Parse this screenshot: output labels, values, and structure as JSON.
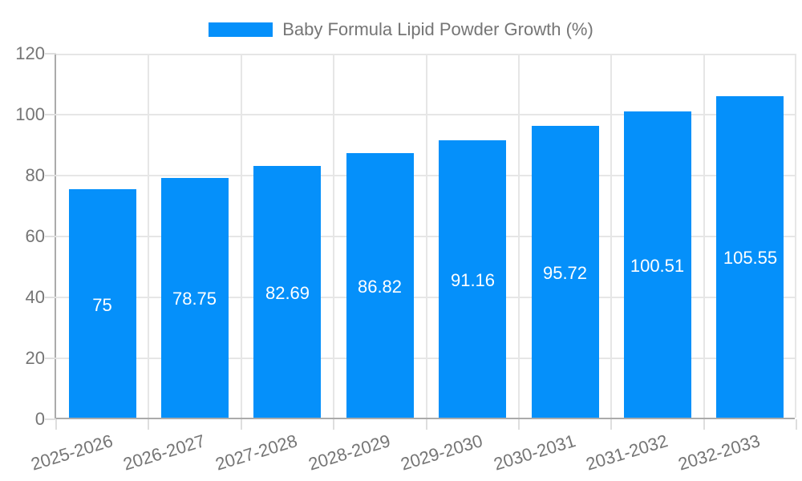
{
  "legend": {
    "swatch_color": "#0590fa",
    "label": "Baby Formula Lipid Powder Growth (%)"
  },
  "chart_data": {
    "type": "bar",
    "title": "Baby Formula Lipid Powder Growth (%)",
    "categories": [
      "2025-2026",
      "2026-2027",
      "2027-2028",
      "2028-2029",
      "2029-2030",
      "2030-2031",
      "2031-2032",
      "2032-2033"
    ],
    "series": [
      {
        "name": "Baby Formula Lipid Powder Growth (%)",
        "values": [
          75,
          78.75,
          82.69,
          86.82,
          91.16,
          95.72,
          100.51,
          105.55
        ],
        "value_labels": [
          "75",
          "78.75",
          "82.69",
          "86.82",
          "91.16",
          "95.72",
          "100.51",
          "105.55"
        ]
      }
    ],
    "xlabel": "",
    "ylabel": "",
    "ylim": [
      0,
      120
    ],
    "yticks": [
      0,
      20,
      40,
      60,
      80,
      100,
      120
    ],
    "grid": "horizontal and vertical light gray gridlines",
    "legend_position": "top-center",
    "bar_color": "#0590fa",
    "value_label_color": "#ffffff",
    "axis_text_color": "#757575",
    "x_label_rotation_deg": -17
  },
  "colors": {
    "bar": "#0590fa",
    "axis": "#ababab",
    "grid": "#e6e6e6",
    "tick": "#dedede",
    "text": "#757575",
    "value_text": "#ffffff",
    "background": "#ffffff"
  }
}
